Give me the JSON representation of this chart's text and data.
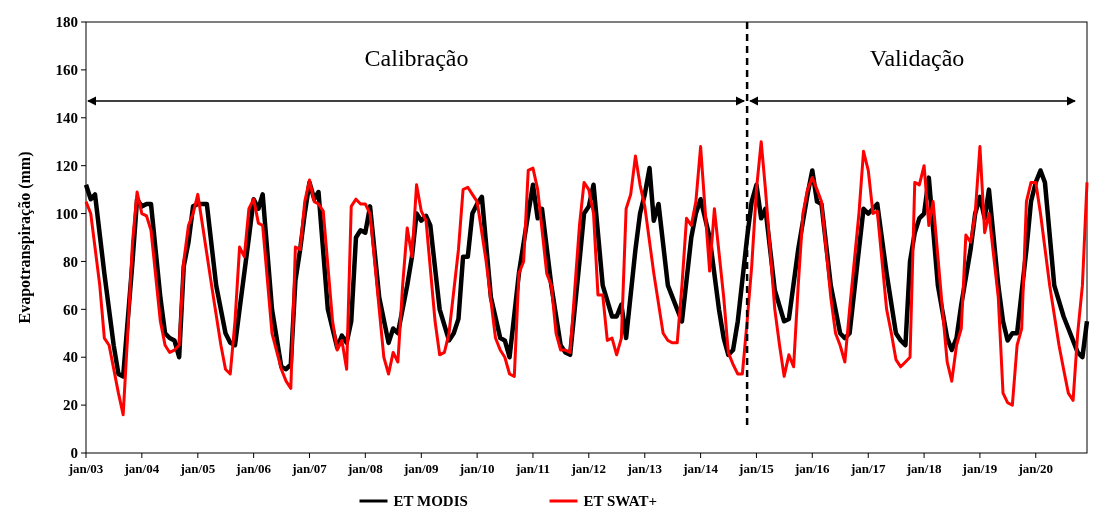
{
  "chart_data": {
    "type": "line",
    "ylabel": "Evapotranspiração (mm)",
    "ylim": [
      0,
      180
    ],
    "yticks": [
      0,
      20,
      40,
      60,
      80,
      100,
      120,
      140,
      160,
      180
    ],
    "xlim": [
      "2003-01",
      "2020-12"
    ],
    "xticks": [
      {
        "value": "2003-01",
        "label": "jan/03"
      },
      {
        "value": "2004-01",
        "label": "jan/04"
      },
      {
        "value": "2005-01",
        "label": "jan/05"
      },
      {
        "value": "2006-01",
        "label": "jan/06"
      },
      {
        "value": "2007-01",
        "label": "jan/07"
      },
      {
        "value": "2008-01",
        "label": "jan/08"
      },
      {
        "value": "2009-01",
        "label": "jan/09"
      },
      {
        "value": "2010-01",
        "label": "jan/10"
      },
      {
        "value": "2011-01",
        "label": "jan/11"
      },
      {
        "value": "2012-01",
        "label": "jan/12"
      },
      {
        "value": "2013-01",
        "label": "jan/13"
      },
      {
        "value": "2014-01",
        "label": "jan/14"
      },
      {
        "value": "2015-01",
        "label": "jan/15"
      },
      {
        "value": "2016-01",
        "label": "jan/16"
      },
      {
        "value": "2017-01",
        "label": "jan/17"
      },
      {
        "value": "2018-01",
        "label": "jan/18"
      },
      {
        "value": "2019-01",
        "label": "jan/19"
      },
      {
        "value": "2020-01",
        "label": "jan/20"
      }
    ],
    "grid": false,
    "legend": "bottom",
    "marker": "none",
    "line_style": "solid",
    "ref_lines": [
      {
        "axis": "x",
        "value": "2014-11",
        "label": null,
        "color": "#000000",
        "line_style": "dashed"
      }
    ],
    "annotations": [
      "Calibração",
      "Validação"
    ],
    "series": [
      {
        "name": "ET MODIS",
        "color": "#000000",
        "x": [
          "2003-01",
          "2003-02",
          "2003-03",
          "2003-05",
          "2003-07",
          "2003-08",
          "2003-09",
          "2003-11",
          "2003-12",
          "2004-01",
          "2004-02",
          "2004-03",
          "2004-05",
          "2004-06",
          "2004-07",
          "2004-08",
          "2004-09",
          "2004-10",
          "2004-11",
          "2004-12",
          "2005-01",
          "2005-02",
          "2005-03",
          "2005-05",
          "2005-07",
          "2005-08",
          "2005-09",
          "2005-10",
          "2005-12",
          "2006-01",
          "2006-02",
          "2006-03",
          "2006-05",
          "2006-07",
          "2006-08",
          "2006-09",
          "2006-10",
          "2006-11",
          "2006-12",
          "2007-01",
          "2007-02",
          "2007-03",
          "2007-05",
          "2007-07",
          "2007-08",
          "2007-09",
          "2007-10",
          "2007-11",
          "2007-12",
          "2008-01",
          "2008-02",
          "2008-04",
          "2008-06",
          "2008-07",
          "2008-08",
          "2008-10",
          "2008-11",
          "2008-12",
          "2009-01",
          "2009-02",
          "2009-03",
          "2009-05",
          "2009-07",
          "2009-08",
          "2009-09",
          "2009-10",
          "2009-11",
          "2009-12",
          "2010-01",
          "2010-02",
          "2010-04",
          "2010-06",
          "2010-07",
          "2010-08",
          "2010-10",
          "2010-12",
          "2011-01",
          "2011-02",
          "2011-03",
          "2011-05",
          "2011-07",
          "2011-08",
          "2011-09",
          "2011-11",
          "2011-12",
          "2012-01",
          "2012-02",
          "2012-04",
          "2012-06",
          "2012-07",
          "2012-08",
          "2012-09",
          "2012-11",
          "2012-12",
          "2013-01",
          "2013-02",
          "2013-03",
          "2013-04",
          "2013-06",
          "2013-08",
          "2013-09",
          "2013-11",
          "2013-12",
          "2014-01",
          "2014-03",
          "2014-05",
          "2014-06",
          "2014-07",
          "2014-08",
          "2014-09",
          "2014-11",
          "2014-12",
          "2015-01",
          "2015-02",
          "2015-03",
          "2015-05",
          "2015-07",
          "2015-08",
          "2015-10",
          "2015-12",
          "2016-01",
          "2016-02",
          "2016-03",
          "2016-05",
          "2016-07",
          "2016-08",
          "2016-09",
          "2016-11",
          "2016-12",
          "2017-01",
          "2017-02",
          "2017-03",
          "2017-05",
          "2017-07",
          "2017-08",
          "2017-09",
          "2017-10",
          "2017-11",
          "2017-12",
          "2018-01",
          "2018-02",
          "2018-04",
          "2018-06",
          "2018-07",
          "2018-08",
          "2018-09",
          "2018-11",
          "2018-12",
          "2019-01",
          "2019-02",
          "2019-03",
          "2019-05",
          "2019-06",
          "2019-07",
          "2019-08",
          "2019-09",
          "2019-11",
          "2019-12",
          "2020-01",
          "2020-02",
          "2020-03",
          "2020-05",
          "2020-07",
          "2020-08",
          "2020-10",
          "2020-11",
          "2020-12"
        ],
        "values": [
          112,
          106,
          108,
          75,
          45,
          33,
          32,
          80,
          106,
          103,
          104,
          104,
          65,
          50,
          48,
          47,
          40,
          78,
          88,
          103,
          104,
          104,
          104,
          70,
          50,
          46,
          45,
          60,
          90,
          106,
          102,
          108,
          60,
          36,
          35,
          37,
          72,
          85,
          100,
          113,
          106,
          109,
          60,
          44,
          49,
          46,
          55,
          90,
          93,
          92,
          103,
          65,
          46,
          52,
          50,
          70,
          82,
          100,
          97,
          99,
          95,
          60,
          47,
          50,
          56,
          82,
          82,
          100,
          104,
          107,
          65,
          48,
          47,
          40,
          75,
          100,
          112,
          98,
          102,
          70,
          45,
          42,
          41,
          80,
          100,
          103,
          112,
          70,
          57,
          57,
          62,
          48,
          85,
          100,
          108,
          119,
          97,
          104,
          70,
          60,
          55,
          90,
          100,
          106,
          90,
          60,
          48,
          41,
          43,
          55,
          90,
          105,
          112,
          98,
          102,
          68,
          55,
          56,
          85,
          108,
          118,
          105,
          104,
          70,
          50,
          48,
          50,
          85,
          102,
          100,
          102,
          104,
          75,
          50,
          47,
          45,
          80,
          92,
          98,
          100,
          115,
          70,
          48,
          43,
          48,
          62,
          85,
          100,
          107,
          98,
          110,
          70,
          55,
          47,
          50,
          50,
          85,
          105,
          113,
          118,
          113,
          70,
          57,
          52,
          42,
          40,
          55
        ]
      },
      {
        "name": "ET SWAT+",
        "color": "#ff0000",
        "x": [
          "2003-01",
          "2003-02",
          "2003-04",
          "2003-05",
          "2003-06",
          "2003-08",
          "2003-09",
          "2003-10",
          "2003-11",
          "2003-12",
          "2004-01",
          "2004-02",
          "2004-03",
          "2004-05",
          "2004-06",
          "2004-07",
          "2004-08",
          "2004-09",
          "2004-10",
          "2004-11",
          "2004-12",
          "2005-01",
          "2005-02",
          "2005-04",
          "2005-06",
          "2005-07",
          "2005-08",
          "2005-09",
          "2005-10",
          "2005-11",
          "2005-12",
          "2006-01",
          "2006-02",
          "2006-03",
          "2006-05",
          "2006-07",
          "2006-08",
          "2006-09",
          "2006-10",
          "2006-11",
          "2006-12",
          "2007-01",
          "2007-02",
          "2007-03",
          "2007-04",
          "2007-06",
          "2007-07",
          "2007-08",
          "2007-09",
          "2007-10",
          "2007-11",
          "2007-12",
          "2008-01",
          "2008-02",
          "2008-04",
          "2008-05",
          "2008-06",
          "2008-07",
          "2008-08",
          "2008-09",
          "2008-10",
          "2008-11",
          "2008-12",
          "2009-01",
          "2009-02",
          "2009-04",
          "2009-05",
          "2009-06",
          "2009-07",
          "2009-09",
          "2009-10",
          "2009-11",
          "2009-12",
          "2010-01",
          "2010-03",
          "2010-05",
          "2010-06",
          "2010-07",
          "2010-08",
          "2010-09",
          "2010-10",
          "2010-11",
          "2010-12",
          "2011-01",
          "2011-02",
          "2011-04",
          "2011-05",
          "2011-06",
          "2011-07",
          "2011-08",
          "2011-09",
          "2011-11",
          "2011-12",
          "2012-01",
          "2012-02",
          "2012-03",
          "2012-04",
          "2012-05",
          "2012-06",
          "2012-07",
          "2012-08",
          "2012-09",
          "2012-10",
          "2012-11",
          "2012-12",
          "2013-01",
          "2013-03",
          "2013-05",
          "2013-06",
          "2013-07",
          "2013-08",
          "2013-09",
          "2013-10",
          "2013-11",
          "2013-12",
          "2014-01",
          "2014-02",
          "2014-03",
          "2014-04",
          "2014-06",
          "2014-07",
          "2014-08",
          "2014-09",
          "2014-10",
          "2014-11",
          "2014-12",
          "2015-01",
          "2015-02",
          "2015-03",
          "2015-05",
          "2015-06",
          "2015-07",
          "2015-08",
          "2015-09",
          "2015-10",
          "2015-11",
          "2015-12",
          "2016-01",
          "2016-02",
          "2016-03",
          "2016-05",
          "2016-06",
          "2016-07",
          "2016-08",
          "2016-09",
          "2016-11",
          "2016-12",
          "2017-01",
          "2017-02",
          "2017-03",
          "2017-05",
          "2017-06",
          "2017-07",
          "2017-08",
          "2017-09",
          "2017-10",
          "2017-11",
          "2017-12",
          "2018-01",
          "2018-02",
          "2018-03",
          "2018-05",
          "2018-06",
          "2018-07",
          "2018-08",
          "2018-09",
          "2018-10",
          "2018-11",
          "2018-12",
          "2019-01",
          "2019-02",
          "2019-03",
          "2019-05",
          "2019-06",
          "2019-07",
          "2019-08",
          "2019-09",
          "2019-10",
          "2019-11",
          "2019-12",
          "2020-01",
          "2020-02",
          "2020-04",
          "2020-06",
          "2020-07",
          "2020-08",
          "2020-09",
          "2020-10",
          "2020-11",
          "2020-12"
        ],
        "values": [
          105,
          100,
          70,
          48,
          45,
          25,
          16,
          50,
          88,
          109,
          100,
          99,
          93,
          55,
          45,
          42,
          43,
          45,
          80,
          95,
          100,
          108,
          95,
          70,
          45,
          35,
          33,
          55,
          86,
          82,
          102,
          106,
          96,
          95,
          50,
          35,
          30,
          27,
          86,
          85,
          105,
          114,
          105,
          104,
          101,
          55,
          43,
          47,
          35,
          103,
          106,
          104,
          104,
          100,
          60,
          40,
          33,
          42,
          38,
          70,
          94,
          82,
          112,
          101,
          97,
          55,
          41,
          42,
          50,
          85,
          110,
          111,
          108,
          105,
          80,
          48,
          43,
          40,
          33,
          32,
          75,
          80,
          118,
          119,
          110,
          75,
          70,
          50,
          43,
          43,
          42,
          95,
          113,
          110,
          100,
          66,
          66,
          47,
          48,
          41,
          48,
          102,
          108,
          124,
          112,
          103,
          75,
          50,
          47,
          46,
          46,
          70,
          98,
          95,
          105,
          128,
          100,
          76,
          102,
          65,
          42,
          37,
          33,
          33,
          55,
          78,
          110,
          130,
          110,
          60,
          45,
          32,
          41,
          36,
          70,
          100,
          110,
          115,
          110,
          105,
          65,
          50,
          45,
          38,
          60,
          100,
          126,
          118,
          100,
          101,
          60,
          50,
          39,
          36,
          38,
          40,
          113,
          112,
          120,
          95,
          105,
          60,
          38,
          30,
          45,
          52,
          91,
          88,
          100,
          128,
          92,
          100,
          65,
          25,
          21,
          20,
          45,
          52,
          105,
          113,
          113,
          100,
          70,
          45,
          35,
          25,
          22,
          50,
          70,
          113
        ]
      }
    ]
  }
}
